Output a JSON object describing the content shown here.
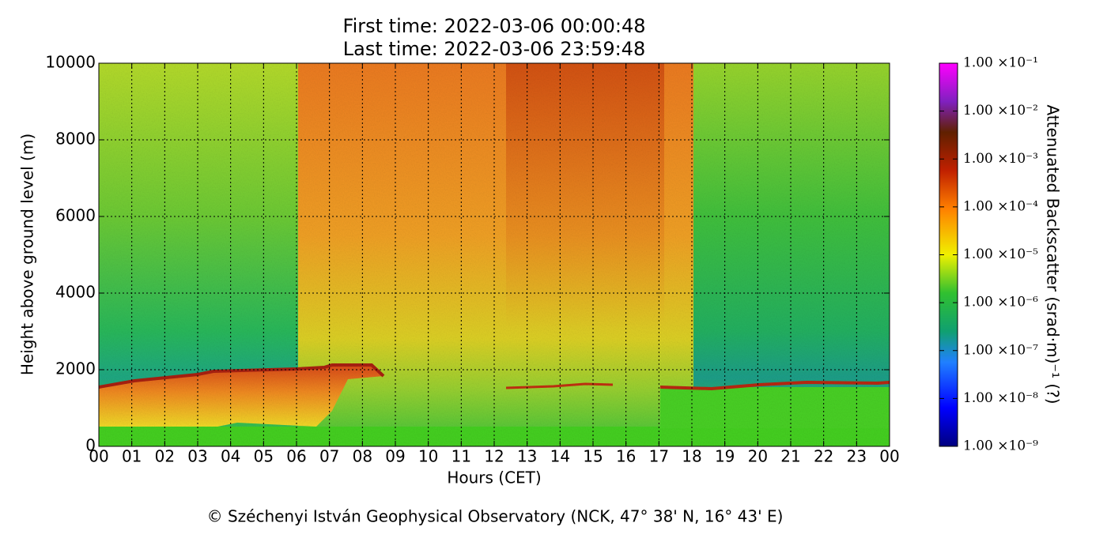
{
  "chart_data": {
    "type": "heatmap",
    "title": "First time: 2022-03-06 00:00:48",
    "subtitle": "Last time: 2022-03-06 23:59:48",
    "x_label": "Hours (CET)",
    "y_label": "Height above ground level (m)",
    "colorbar_label": "Attenuated Backscatter (srad·m)⁻¹ (?)",
    "footer": "© Széchenyi István Geophysical Observatory (NCK, 47° 38' N, 16° 43' E)",
    "xlim": [
      0,
      24
    ],
    "xticks": [
      {
        "value": 0,
        "label": "00"
      },
      {
        "value": 1,
        "label": "01"
      },
      {
        "value": 2,
        "label": "02"
      },
      {
        "value": 3,
        "label": "03"
      },
      {
        "value": 4,
        "label": "04"
      },
      {
        "value": 5,
        "label": "05"
      },
      {
        "value": 6,
        "label": "06"
      },
      {
        "value": 7,
        "label": "07"
      },
      {
        "value": 8,
        "label": "08"
      },
      {
        "value": 9,
        "label": "09"
      },
      10,
      11,
      12,
      13,
      14,
      15,
      16,
      17,
      18,
      19,
      20,
      21,
      22,
      23,
      {
        "value": 24,
        "label": "00"
      }
    ],
    "ylim": [
      0,
      10000
    ],
    "yticks": [
      0,
      2000,
      4000,
      6000,
      8000,
      10000
    ],
    "grid": true,
    "color_scale": "log",
    "clim": [
      1e-09,
      0.1
    ],
    "cticks": [
      {
        "value": 1e-09,
        "label": "1.00 ×10⁻⁹"
      },
      {
        "value": 1e-08,
        "label": "1.00 ×10⁻⁸"
      },
      {
        "value": 1e-07,
        "label": "1.00 ×10⁻⁷"
      },
      {
        "value": 1e-06,
        "label": "1.00 ×10⁻⁶"
      },
      {
        "value": 1e-05,
        "label": "1.00 ×10⁻⁵"
      },
      {
        "value": 0.0001,
        "label": "1.00 ×10⁻⁴"
      },
      {
        "value": 0.001,
        "label": "1.00 ×10⁻³"
      },
      {
        "value": 0.01,
        "label": "1.00 ×10⁻²"
      },
      {
        "value": 0.1,
        "label": "1.00 ×10⁻¹"
      }
    ]
  }
}
